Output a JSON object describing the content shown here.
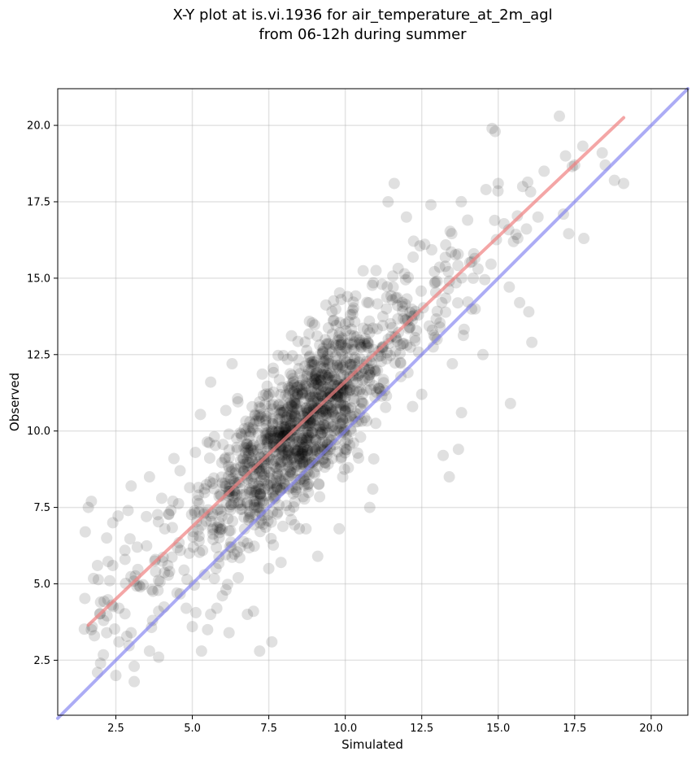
{
  "chart_data": {
    "type": "scatter",
    "title": "X-Y plot at is.vi.1936 for air_temperature_at_2m_agl",
    "subtitle": "from 06-12h during summer",
    "xlabel": "Simulated",
    "ylabel": "Observed",
    "xlim": [
      0.6,
      21.2
    ],
    "ylim": [
      0.7,
      21.2
    ],
    "x_ticks": [
      "2.5",
      "5.0",
      "7.5",
      "10.0",
      "12.5",
      "15.0",
      "17.5",
      "20.0"
    ],
    "y_ticks": [
      "2.5",
      "5.0",
      "7.5",
      "10.0",
      "12.5",
      "15.0",
      "17.5",
      "20.0"
    ],
    "grid": true,
    "point_color": "#000000",
    "point_alpha": 0.12,
    "series": [
      {
        "type": "scatter",
        "points_generated_from_summary": true,
        "n_points": 1400
      }
    ],
    "regression_line": {
      "color": "#f08080",
      "x": [
        1.6,
        19.1
      ],
      "y": [
        3.65,
        20.25
      ]
    },
    "identity_line": {
      "color": "#8080f0",
      "x": [
        0.6,
        21.2
      ],
      "y": [
        0.6,
        21.2
      ]
    },
    "sparse_points": [
      [
        1.5,
        6.7
      ],
      [
        1.6,
        7.5
      ],
      [
        1.7,
        7.7
      ],
      [
        1.7,
        3.5
      ],
      [
        1.8,
        3.3
      ],
      [
        1.9,
        2.1
      ],
      [
        2.0,
        2.4
      ],
      [
        1.9,
        5.6
      ],
      [
        2.0,
        4.4
      ],
      [
        2.1,
        3.8
      ],
      [
        2.2,
        3.4
      ],
      [
        2.2,
        6.5
      ],
      [
        2.3,
        5.1
      ],
      [
        2.4,
        5.6
      ],
      [
        2.4,
        7.0
      ],
      [
        2.5,
        2.0
      ],
      [
        2.6,
        4.2
      ],
      [
        2.6,
        3.1
      ],
      [
        2.8,
        5.8
      ],
      [
        2.9,
        7.4
      ],
      [
        3.0,
        3.4
      ],
      [
        3.0,
        8.2
      ],
      [
        3.1,
        2.3
      ],
      [
        3.1,
        1.8
      ],
      [
        3.2,
        6.2
      ],
      [
        3.3,
        4.9
      ],
      [
        3.5,
        7.2
      ],
      [
        3.6,
        2.8
      ],
      [
        3.6,
        8.5
      ],
      [
        3.7,
        3.8
      ],
      [
        3.8,
        5.4
      ],
      [
        3.9,
        4.1
      ],
      [
        3.9,
        2.6
      ],
      [
        4.0,
        7.8
      ],
      [
        4.1,
        6.8
      ],
      [
        4.2,
        5.6
      ],
      [
        4.3,
        7.4
      ],
      [
        4.4,
        9.1
      ],
      [
        4.5,
        4.7
      ],
      [
        4.6,
        8.7
      ],
      [
        4.8,
        4.2
      ],
      [
        4.9,
        6.0
      ],
      [
        5.0,
        3.6
      ],
      [
        5.1,
        9.3
      ],
      [
        5.2,
        7.9
      ],
      [
        5.3,
        2.8
      ],
      [
        5.4,
        5.3
      ],
      [
        5.5,
        3.5
      ],
      [
        5.6,
        4.0
      ],
      [
        5.6,
        11.6
      ],
      [
        5.8,
        4.2
      ],
      [
        6.1,
        4.8
      ],
      [
        6.2,
        3.4
      ],
      [
        6.3,
        12.2
      ],
      [
        6.5,
        5.2
      ],
      [
        6.8,
        4.0
      ],
      [
        7.0,
        4.1
      ],
      [
        7.2,
        2.8
      ],
      [
        7.5,
        5.5
      ],
      [
        7.6,
        3.1
      ],
      [
        7.9,
        5.7
      ],
      [
        8.5,
        6.8
      ],
      [
        9.1,
        5.9
      ],
      [
        9.8,
        6.8
      ],
      [
        10.1,
        8.8
      ],
      [
        10.5,
        9.8
      ],
      [
        10.8,
        7.5
      ],
      [
        10.9,
        8.1
      ],
      [
        11.2,
        14.8
      ],
      [
        11.4,
        17.5
      ],
      [
        11.6,
        18.1
      ],
      [
        12.0,
        17.0
      ],
      [
        12.2,
        10.8
      ],
      [
        12.5,
        11.2
      ],
      [
        12.8,
        17.4
      ],
      [
        13.0,
        13.0
      ],
      [
        13.2,
        9.2
      ],
      [
        13.4,
        8.5
      ],
      [
        13.5,
        12.2
      ],
      [
        13.8,
        10.6
      ],
      [
        13.7,
        9.4
      ],
      [
        14.0,
        16.9
      ],
      [
        14.2,
        15.8
      ],
      [
        14.5,
        12.5
      ],
      [
        14.6,
        17.9
      ],
      [
        14.8,
        19.9
      ],
      [
        14.9,
        19.8
      ],
      [
        15.0,
        18.1
      ],
      [
        15.4,
        10.9
      ],
      [
        15.5,
        16.2
      ],
      [
        15.8,
        18.0
      ],
      [
        15.7,
        14.2
      ],
      [
        16.0,
        13.9
      ],
      [
        16.1,
        12.9
      ],
      [
        16.3,
        17.0
      ],
      [
        16.5,
        18.5
      ],
      [
        17.0,
        20.3
      ],
      [
        17.2,
        19.0
      ],
      [
        17.5,
        18.7
      ],
      [
        17.8,
        16.3
      ],
      [
        18.4,
        19.1
      ],
      [
        18.5,
        18.7
      ],
      [
        18.8,
        18.2
      ],
      [
        19.1,
        18.1
      ]
    ]
  }
}
